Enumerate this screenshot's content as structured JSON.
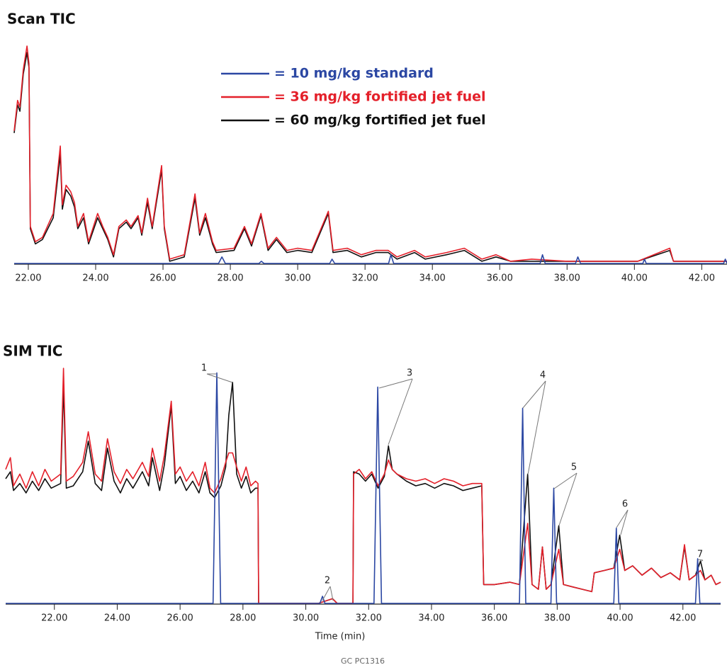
{
  "chart_data": [
    {
      "type": "line",
      "title": "Scan TIC",
      "xlim": [
        21.58,
        42.75
      ],
      "ylim": [
        0,
        100
      ],
      "xticks": [
        {
          "value": 22,
          "label": "22.00"
        },
        {
          "value": 24,
          "label": "24.00"
        },
        {
          "value": 26,
          "label": "26.00"
        },
        {
          "value": 28,
          "label": "28.00"
        },
        {
          "value": 30,
          "label": "30.00"
        },
        {
          "value": 32,
          "label": "32.00"
        },
        {
          "value": 34,
          "label": "34.00"
        },
        {
          "value": 36,
          "label": "36.00"
        },
        {
          "value": 38,
          "label": "38.00"
        },
        {
          "value": 40,
          "label": "40.00"
        },
        {
          "value": 42,
          "label": "42.00"
        }
      ],
      "series": [
        {
          "name": "= 10 mg/kg standard",
          "color": "#2b47a3",
          "x": [
            21.58,
            27.65,
            27.75,
            27.85,
            28.85,
            28.92,
            29.0,
            30.95,
            31.02,
            31.1,
            32.7,
            32.77,
            32.85,
            37.2,
            37.27,
            37.35,
            38.25,
            38.32,
            38.4,
            40.25,
            40.3,
            40.35,
            42.65,
            42.7,
            42.75
          ],
          "values": [
            0,
            0,
            3,
            0,
            0,
            1,
            0,
            0,
            2,
            0,
            0,
            4,
            0,
            0,
            4,
            0,
            0,
            3,
            0,
            0,
            2,
            0,
            0,
            2,
            0
          ]
        },
        {
          "name": "= 36 mg/kg fortified jet fuel",
          "color": "#e4202a",
          "x": [
            21.58,
            21.68,
            21.75,
            21.85,
            21.96,
            22.02,
            22.06,
            22.21,
            22.42,
            22.74,
            22.95,
            23.01,
            23.12,
            23.26,
            23.37,
            23.47,
            23.64,
            23.79,
            24.06,
            24.21,
            24.36,
            24.53,
            24.69,
            24.91,
            25.05,
            25.26,
            25.37,
            25.54,
            25.68,
            25.96,
            26.04,
            26.2,
            26.63,
            26.95,
            27.09,
            27.26,
            27.47,
            27.58,
            28.11,
            28.42,
            28.63,
            28.91,
            29.12,
            29.37,
            29.68,
            30.0,
            30.42,
            30.91,
            31.05,
            31.47,
            31.89,
            32.32,
            32.69,
            32.95,
            33.47,
            33.79,
            34.42,
            34.95,
            35.47,
            35.89,
            36.32,
            36.95,
            38.0,
            39.05,
            40.1,
            41.05,
            41.16,
            42.21,
            42.75
          ],
          "values": [
            61,
            75,
            72,
            89,
            100,
            92,
            17,
            10,
            12,
            23,
            54,
            27,
            36,
            33,
            28,
            17,
            23,
            10,
            23,
            17,
            12,
            4,
            17,
            20,
            17,
            22,
            14,
            30,
            17,
            45,
            17,
            2,
            4,
            32,
            14,
            23,
            10,
            6,
            7,
            17,
            9,
            23,
            7,
            12,
            6,
            7,
            6,
            24,
            6,
            7,
            4,
            6,
            6,
            3,
            6,
            3,
            5,
            7,
            2,
            4,
            1,
            2,
            1,
            1,
            1,
            7,
            1,
            1,
            1
          ]
        },
        {
          "name": "= 60 mg/kg fortified jet fuel",
          "color": "#111111",
          "x": [
            21.58,
            21.68,
            21.75,
            21.85,
            21.96,
            22.02,
            22.06,
            22.21,
            22.42,
            22.74,
            22.95,
            23.01,
            23.12,
            23.26,
            23.37,
            23.47,
            23.64,
            23.79,
            24.06,
            24.21,
            24.36,
            24.53,
            24.69,
            24.91,
            25.05,
            25.26,
            25.37,
            25.54,
            25.68,
            25.96,
            26.04,
            26.2,
            26.63,
            26.95,
            27.09,
            27.26,
            27.47,
            27.58,
            28.11,
            28.42,
            28.63,
            28.91,
            29.12,
            29.37,
            29.68,
            30.0,
            30.42,
            30.91,
            31.05,
            31.47,
            31.89,
            32.32,
            32.69,
            32.95,
            33.47,
            33.79,
            34.42,
            34.95,
            35.47,
            35.89,
            36.32,
            36.95,
            38.0,
            39.05,
            40.1,
            41.05,
            41.16,
            42.21,
            42.75
          ],
          "values": [
            60,
            73,
            70,
            87,
            97,
            90,
            16,
            9,
            11,
            21,
            50,
            25,
            34,
            31,
            26,
            16,
            21,
            9,
            21,
            16,
            11,
            3,
            16,
            19,
            16,
            21,
            13,
            28,
            16,
            43,
            16,
            1,
            3,
            30,
            13,
            21,
            9,
            5,
            6,
            16,
            8,
            22,
            6,
            11,
            5,
            6,
            5,
            23,
            5,
            6,
            3,
            5,
            5,
            2,
            5,
            2,
            4,
            6,
            1,
            3,
            1,
            1,
            1,
            1,
            1,
            6,
            1,
            1,
            1
          ]
        }
      ]
    },
    {
      "type": "line",
      "title": "SIM TIC",
      "xlabel": "Time (min)",
      "xlim": [
        20.45,
        43.2
      ],
      "ylim": [
        0,
        100
      ],
      "xticks": [
        {
          "value": 22,
          "label": "22.00"
        },
        {
          "value": 24,
          "label": "24.00"
        },
        {
          "value": 26,
          "label": "26.00"
        },
        {
          "value": 28,
          "label": "28.00"
        },
        {
          "value": 30,
          "label": "30.00"
        },
        {
          "value": 32,
          "label": "32.00"
        },
        {
          "value": 34,
          "label": "34.00"
        },
        {
          "value": 36,
          "label": "36.00"
        },
        {
          "value": 38,
          "label": "38.00"
        },
        {
          "value": 40,
          "label": "40.00"
        },
        {
          "value": 42,
          "label": "42.00"
        }
      ],
      "annotations": [
        "1",
        "2",
        "3",
        "4",
        "5",
        "6",
        "7"
      ],
      "footer": "GC  PC1316",
      "series": [
        {
          "name": "= 10 mg/kg standard",
          "color": "#2b47a3",
          "x": [
            20.45,
            27.05,
            27.17,
            27.29,
            30.45,
            30.53,
            30.61,
            32.17,
            32.29,
            32.41,
            36.8,
            36.9,
            37.0,
            37.8,
            37.89,
            37.98,
            39.8,
            39.88,
            39.96,
            42.4,
            42.47,
            42.54,
            43.2
          ],
          "values": [
            0,
            0,
            98,
            0,
            0,
            3,
            0,
            0,
            92,
            0,
            0,
            83,
            0,
            0,
            49,
            0,
            0,
            32,
            0,
            0,
            19,
            0,
            0
          ]
        },
        {
          "name": "= 36 mg/kg fortified jet fuel",
          "color": "#e4202a",
          "x": [
            20.45,
            20.6,
            20.7,
            20.9,
            21.1,
            21.3,
            21.5,
            21.7,
            21.9,
            22.2,
            22.29,
            22.38,
            22.6,
            22.9,
            23.08,
            23.3,
            23.5,
            23.69,
            23.9,
            24.1,
            24.3,
            24.5,
            24.8,
            25.0,
            25.12,
            25.35,
            25.5,
            25.72,
            25.85,
            26.0,
            26.2,
            26.4,
            26.6,
            26.8,
            26.95,
            27.1,
            27.3,
            27.45,
            27.55,
            27.67,
            27.8,
            27.95,
            28.1,
            28.25,
            28.4,
            28.48,
            28.5,
            30.4,
            30.85,
            31.0,
            31.5,
            31.52,
            31.7,
            31.9,
            32.1,
            32.3,
            32.5,
            32.63,
            32.75,
            32.9,
            33.2,
            33.5,
            33.8,
            34.1,
            34.4,
            34.7,
            35.0,
            35.3,
            35.6,
            35.66,
            36.0,
            36.5,
            36.8,
            37.06,
            37.2,
            37.4,
            37.53,
            37.65,
            37.8,
            38.05,
            38.2,
            38.5,
            38.8,
            39.1,
            39.18,
            39.5,
            39.8,
            39.99,
            40.15,
            40.4,
            40.7,
            41.0,
            41.3,
            41.6,
            41.9,
            42.05,
            42.2,
            42.4,
            42.56,
            42.7,
            42.9,
            43.05,
            43.2
          ],
          "values": [
            57,
            62,
            50,
            55,
            49,
            56,
            50,
            57,
            52,
            55,
            100,
            52,
            54,
            60,
            73,
            55,
            52,
            70,
            56,
            51,
            57,
            53,
            60,
            54,
            66,
            52,
            63,
            86,
            55,
            58,
            52,
            56,
            50,
            60,
            49,
            47,
            53,
            60,
            64,
            64,
            58,
            52,
            58,
            50,
            52,
            51,
            0,
            0,
            2,
            0,
            0,
            55,
            57,
            53,
            56,
            50,
            55,
            61,
            57,
            55,
            53,
            52,
            53,
            51,
            53,
            52,
            50,
            51,
            51,
            8,
            8,
            9,
            8,
            34,
            8,
            6,
            24,
            6,
            8,
            23,
            8,
            7,
            6,
            5,
            13,
            14,
            15,
            23,
            14,
            16,
            12,
            15,
            11,
            13,
            10,
            25,
            10,
            12,
            14,
            10,
            12,
            8,
            9
          ]
        },
        {
          "name": "= 60 mg/kg fortified jet fuel",
          "color": "#111111",
          "x": [
            20.45,
            20.6,
            20.7,
            20.9,
            21.1,
            21.3,
            21.5,
            21.7,
            21.9,
            22.2,
            22.29,
            22.38,
            22.6,
            22.9,
            23.08,
            23.3,
            23.5,
            23.69,
            23.9,
            24.1,
            24.3,
            24.5,
            24.8,
            25.0,
            25.12,
            25.35,
            25.5,
            25.72,
            25.85,
            26.0,
            26.2,
            26.4,
            26.6,
            26.8,
            26.95,
            27.1,
            27.3,
            27.45,
            27.55,
            27.67,
            27.8,
            27.95,
            28.1,
            28.25,
            28.4,
            28.48,
            28.5,
            30.4,
            30.85,
            31.0,
            31.5,
            31.52,
            31.7,
            31.9,
            32.1,
            32.3,
            32.5,
            32.63,
            32.75,
            32.9,
            33.2,
            33.5,
            33.8,
            34.1,
            34.4,
            34.7,
            35.0,
            35.3,
            35.6,
            35.66,
            36.0,
            36.5,
            36.8,
            37.06,
            37.2,
            37.4,
            37.53,
            37.65,
            37.8,
            38.05,
            38.2,
            38.5,
            38.8,
            39.1,
            39.18,
            39.5,
            39.8,
            39.99,
            40.15,
            40.4,
            40.7,
            41.0,
            41.3,
            41.6,
            41.9,
            42.05,
            42.2,
            42.4,
            42.56,
            42.7,
            42.9,
            43.05,
            43.2
          ],
          "values": [
            53,
            56,
            48,
            51,
            47,
            52,
            48,
            53,
            49,
            51,
            92,
            49,
            50,
            56,
            69,
            51,
            48,
            66,
            52,
            47,
            53,
            49,
            56,
            50,
            62,
            48,
            59,
            84,
            51,
            54,
            48,
            52,
            47,
            56,
            47,
            45,
            50,
            58,
            80,
            94,
            55,
            49,
            54,
            47,
            49,
            49,
            0,
            0,
            2,
            0,
            0,
            56,
            55,
            52,
            55,
            49,
            54,
            67,
            57,
            55,
            52,
            50,
            51,
            49,
            51,
            50,
            48,
            49,
            50,
            8,
            8,
            9,
            8,
            55,
            8,
            6,
            24,
            6,
            8,
            33,
            8,
            7,
            6,
            5,
            13,
            14,
            15,
            29,
            14,
            16,
            12,
            15,
            11,
            13,
            10,
            24,
            10,
            12,
            18,
            10,
            12,
            8,
            9
          ]
        }
      ]
    }
  ]
}
